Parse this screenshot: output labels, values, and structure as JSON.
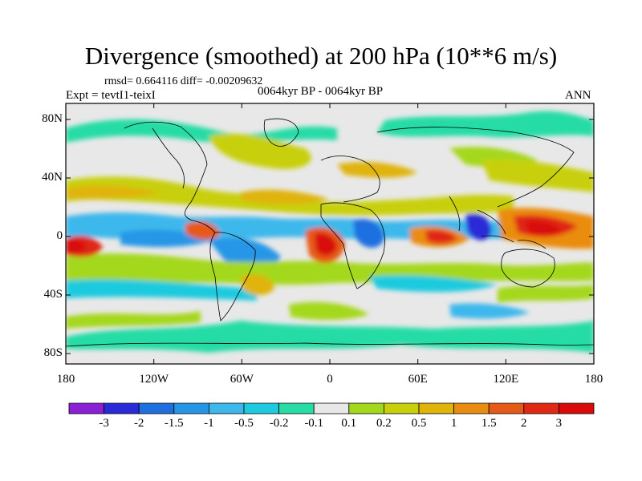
{
  "header": {
    "title": "Divergence (smoothed) at 200 hPa (10**6 m/s)",
    "stats": "rmsd= 0.664116 diff= -0.00209632",
    "experiment": "Expt = tevtI1-teixI",
    "period": "0064kyr BP - 0064kyr BP",
    "season": "ANN"
  },
  "axes": {
    "y_ticks": [
      "80N",
      "40N",
      "0",
      "40S",
      "80S"
    ],
    "x_ticks": [
      "180",
      "120W",
      "60W",
      "0",
      "60E",
      "120E",
      "180"
    ]
  },
  "colorbar": {
    "labels": [
      "-3",
      "-2",
      "-1.5",
      "-1",
      "-0.5",
      "-0.2",
      "-0.1",
      "0.1",
      "0.2",
      "0.5",
      "1",
      "1.5",
      "2",
      "3"
    ],
    "colors": [
      "#8a1fd6",
      "#2a2ad8",
      "#1e6fe0",
      "#2596e6",
      "#3db8ec",
      "#1ecadf",
      "#28dca6",
      "#e8e8e8",
      "#a4d81a",
      "#c8d00c",
      "#e0b40a",
      "#ea8c10",
      "#e65a18",
      "#e02814",
      "#d80a0a"
    ]
  },
  "colors": {
    "land_outline": "#000000",
    "ocean_neutral": "#e8e8e8"
  }
}
